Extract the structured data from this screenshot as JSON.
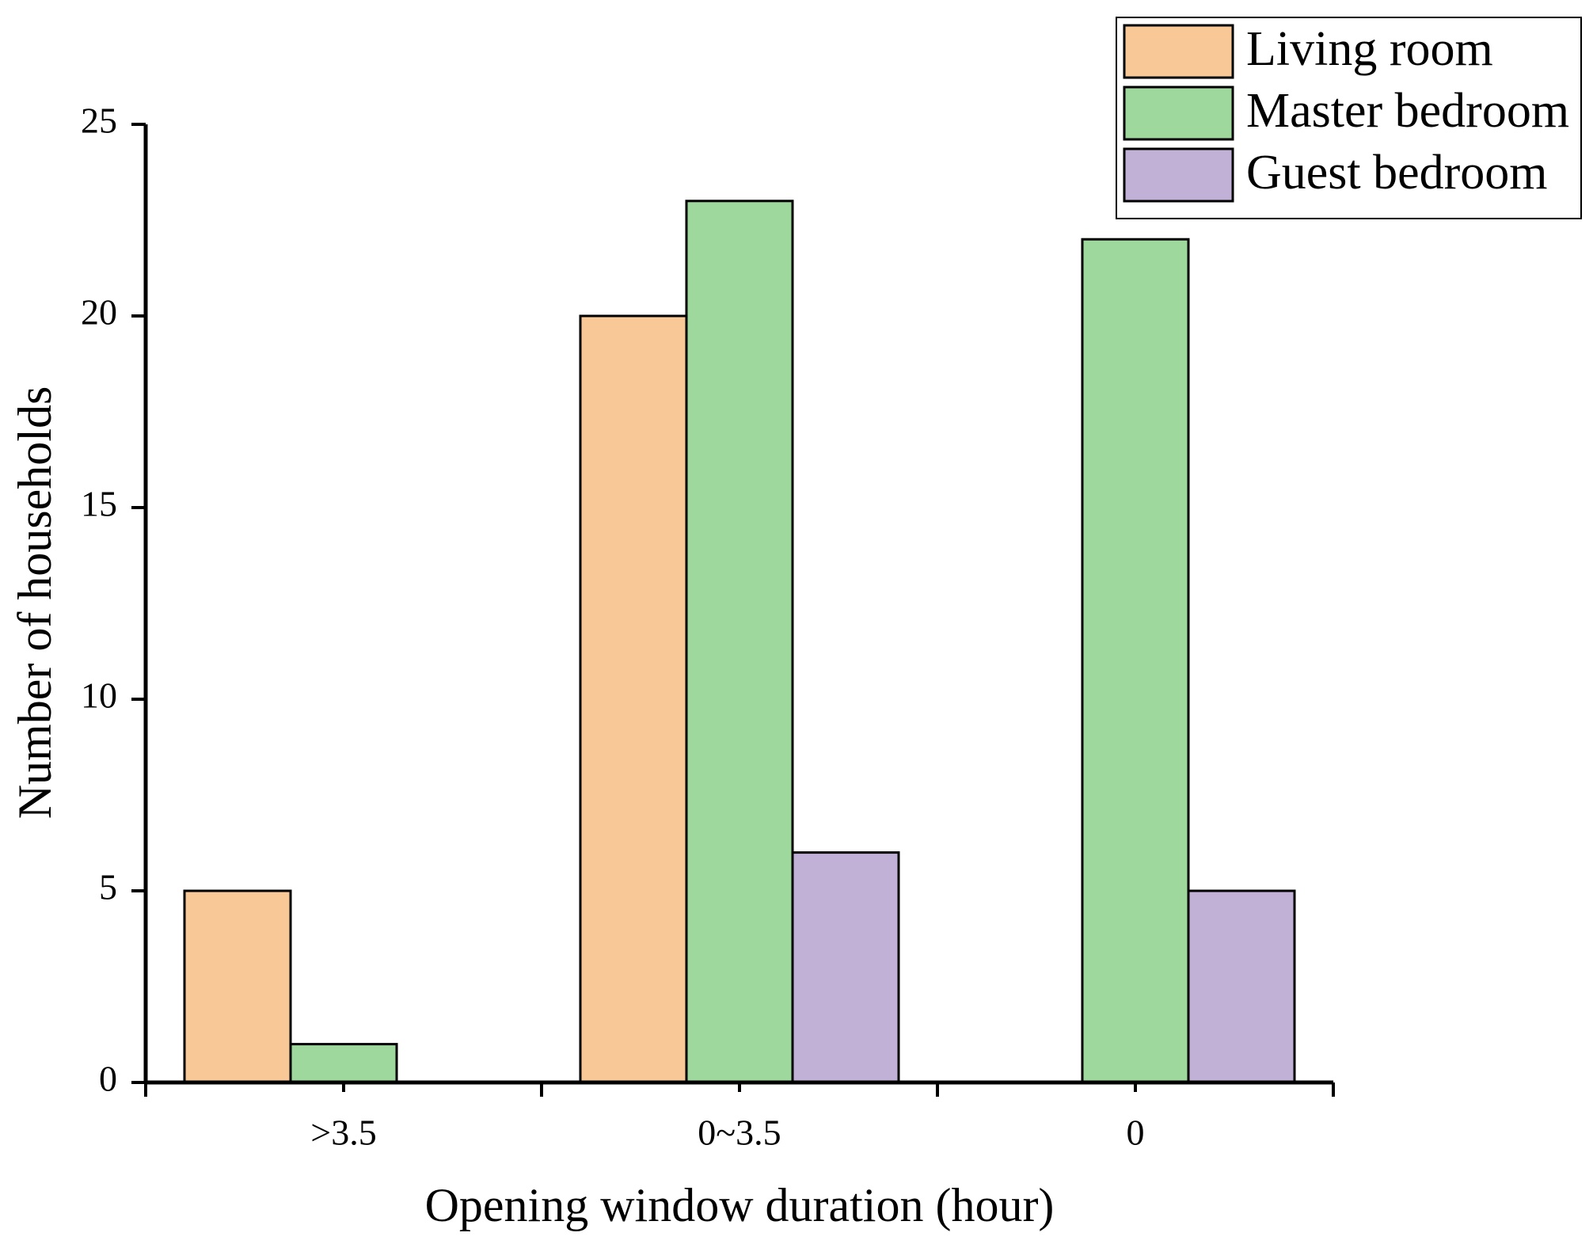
{
  "chart_data": {
    "type": "bar",
    "x_label": "Opening window duration (hour)",
    "y_label": "Number of households",
    "categories": [
      ">3.5",
      "0~3.5",
      "0"
    ],
    "series": [
      {
        "name": "Living room",
        "color": "#f9c897",
        "values": [
          5,
          20,
          0
        ]
      },
      {
        "name": "Master bedroom",
        "color": "#9fd89c",
        "values": [
          1,
          23,
          22
        ]
      },
      {
        "name": "Guest bedroom",
        "color": "#c2b1d7",
        "values": [
          0,
          6,
          5
        ]
      }
    ],
    "ylim": [
      0,
      25
    ],
    "yticks": [
      0,
      5,
      10,
      15,
      20,
      25
    ],
    "legend": "top-right"
  }
}
